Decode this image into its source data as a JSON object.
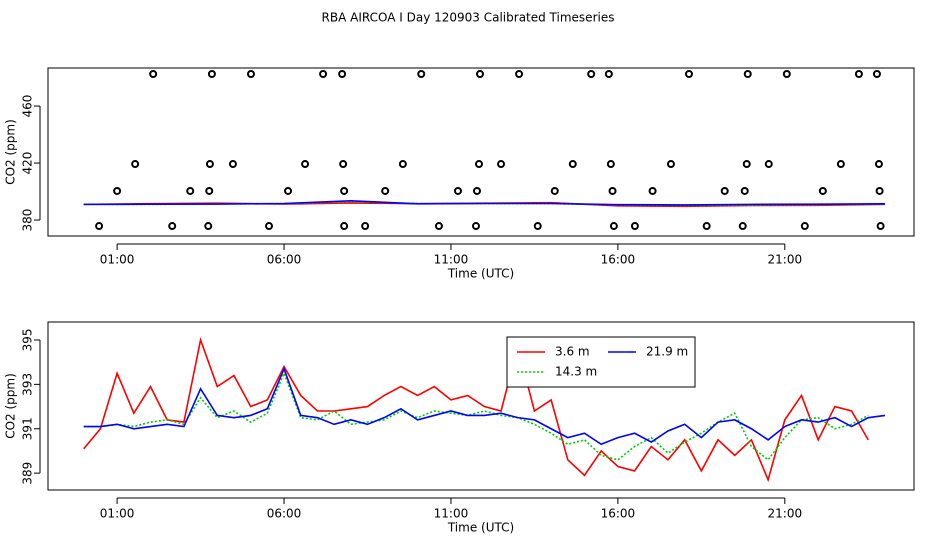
{
  "chart_data": [
    {
      "type": "line",
      "title": "RBA AIRCOA I  Day 120903  Calibrated Timeseries",
      "xlabel": "Time (UTC)",
      "ylabel": "CO2 (ppm)",
      "xlim": [
        -1.07,
        24.87
      ],
      "ylim": [
        368.8,
        486.7
      ],
      "xticks": [
        {
          "value": 1,
          "label": "01:00"
        },
        {
          "value": 6,
          "label": "06:00"
        },
        {
          "value": 11,
          "label": "11:00"
        },
        {
          "value": 16,
          "label": "16:00"
        },
        {
          "value": 21,
          "label": "21:00"
        }
      ],
      "yticks": [
        380,
        420,
        460
      ],
      "x": [
        0,
        2,
        4,
        6,
        8,
        10,
        12,
        14,
        16,
        18,
        20,
        22,
        24
      ],
      "series": [
        {
          "color": "#ff0000",
          "linestyle": "solid",
          "values": [
            391,
            391.5,
            391.8,
            391.2,
            392,
            391.5,
            391.8,
            392.2,
            390,
            389.6,
            390.2,
            390.3,
            391
          ]
        },
        {
          "color": "#00cd00",
          "linestyle": "dotted",
          "values": [
            391,
            391,
            391.3,
            391.5,
            393,
            391.5,
            391.6,
            391.5,
            390.6,
            390.2,
            390.5,
            390.8,
            391.2
          ]
        },
        {
          "color": "#0000ff",
          "linestyle": "solid",
          "values": [
            391,
            391.1,
            391.2,
            391.6,
            393.5,
            391.4,
            391.6,
            391.6,
            390.8,
            390.6,
            391,
            391.1,
            391.4
          ]
        },
        {
          "color": "#000000",
          "style": "points",
          "x": [
            2.08,
            3.84,
            5.01,
            7.17,
            7.74,
            10.11,
            11.87,
            13.04,
            15.2,
            15.73,
            18.13,
            19.89,
            21.06,
            23.22,
            23.76,
            1.54,
            3.78,
            4.47,
            6.63,
            7.77,
            9.56,
            11.84,
            12.5,
            14.65,
            15.79,
            17.59,
            19.86,
            20.52,
            22.68,
            23.82,
            1.0,
            3.19,
            3.76,
            6.12,
            7.8,
            9.03,
            11.21,
            11.78,
            14.11,
            15.84,
            17.04,
            19.2,
            19.8,
            22.14,
            23.84,
            0.46,
            2.65,
            3.73,
            5.55,
            7.8,
            8.43,
            10.64,
            11.75,
            13.6,
            15.88,
            16.51,
            18.66,
            19.74,
            21.6,
            23.87
          ],
          "values": [
            482.5,
            482.5,
            482.5,
            482.5,
            482.5,
            482.5,
            482.5,
            482.5,
            482.5,
            482.5,
            482.5,
            482.5,
            482.5,
            482.5,
            482.5,
            419.3,
            419.3,
            419.3,
            419.3,
            419.3,
            419.3,
            419.3,
            419.3,
            419.3,
            419.3,
            419.3,
            419.3,
            419.3,
            419.3,
            419.3,
            400.4,
            400.4,
            400.4,
            400.4,
            400.4,
            400.4,
            400.4,
            400.4,
            400.4,
            400.4,
            400.4,
            400.4,
            400.4,
            400.4,
            400.4,
            375.8,
            375.8,
            375.8,
            375.8,
            375.8,
            375.8,
            375.8,
            375.8,
            375.8,
            375.8,
            375.8,
            375.8,
            375.8,
            375.8,
            375.8
          ]
        }
      ]
    },
    {
      "type": "line",
      "xlabel": "Time (UTC)",
      "ylabel": "CO2 (ppm)",
      "xlim": [
        -1.07,
        24.87
      ],
      "ylim": [
        388.24,
        395.81
      ],
      "xticks": [
        {
          "value": 1,
          "label": "01:00"
        },
        {
          "value": 6,
          "label": "06:00"
        },
        {
          "value": 11,
          "label": "11:00"
        },
        {
          "value": 16,
          "label": "16:00"
        },
        {
          "value": 21,
          "label": "21:00"
        }
      ],
      "yticks": [
        389,
        391,
        393,
        395
      ],
      "legend": "top",
      "x": [
        0,
        0.5,
        1,
        1.5,
        2,
        2.5,
        3,
        3.5,
        4,
        4.5,
        5,
        5.5,
        6,
        6.5,
        7,
        7.5,
        8,
        8.5,
        9,
        9.5,
        10,
        10.5,
        11,
        11.5,
        12,
        12.5,
        13,
        13.5,
        14,
        14.5,
        15,
        15.5,
        16,
        16.5,
        17,
        17.5,
        18,
        18.5,
        19,
        19.5,
        20,
        20.5,
        21,
        21.5,
        22,
        22.5,
        23,
        23.5,
        24
      ],
      "series": [
        {
          "name": "3.6 m",
          "color": "#ff0000",
          "linestyle": "solid",
          "values": [
            390.1,
            391,
            393.5,
            391.7,
            392.9,
            391.4,
            391.3,
            395,
            392.9,
            393.4,
            392,
            392.3,
            393.8,
            392.5,
            391.8,
            391.8,
            391.9,
            392,
            392.5,
            392.9,
            392.5,
            392.9,
            392.3,
            392.5,
            392,
            391.8,
            394.7,
            391.8,
            392.3,
            389.6,
            388.9,
            390,
            389.3,
            389.1,
            390.2,
            389.6,
            390.5,
            389.1,
            390.5,
            389.8,
            390.5,
            388.7,
            391.4,
            392.5,
            390.5,
            392,
            391.8,
            390.5,
            null
          ]
        },
        {
          "name": "14.3 m",
          "color": "#00cd00",
          "linestyle": "dotted",
          "values": [
            391.1,
            391.1,
            391.2,
            391.1,
            391.3,
            391.4,
            391.2,
            392.4,
            391.5,
            391.8,
            391.3,
            391.7,
            393.5,
            391.5,
            391.4,
            391.8,
            391.2,
            391.3,
            391.4,
            391.8,
            391.5,
            391.8,
            391.7,
            391.6,
            391.8,
            391.6,
            391.5,
            391.2,
            390.8,
            390.3,
            390.5,
            389.8,
            389.6,
            390.2,
            390.6,
            389.9,
            390.4,
            390.8,
            391.3,
            391.7,
            390.2,
            389.6,
            390.6,
            391.4,
            391.5,
            391,
            391.2,
            391.6,
            null
          ]
        },
        {
          "name": "21.9 m",
          "color": "#0000ff",
          "linestyle": "solid",
          "values": [
            391.1,
            391.1,
            391.2,
            391,
            391.1,
            391.2,
            391.1,
            392.8,
            391.6,
            391.5,
            391.6,
            391.9,
            393.7,
            391.6,
            391.5,
            391.2,
            391.4,
            391.2,
            391.5,
            391.9,
            391.4,
            391.6,
            391.8,
            391.6,
            391.6,
            391.7,
            391.5,
            391.4,
            391,
            390.6,
            390.8,
            390.3,
            390.6,
            390.8,
            390.4,
            390.9,
            391.2,
            390.6,
            391.3,
            391.4,
            391,
            390.5,
            391.1,
            391.4,
            391.3,
            391.5,
            391.1,
            391.5,
            391.6
          ]
        }
      ]
    }
  ]
}
